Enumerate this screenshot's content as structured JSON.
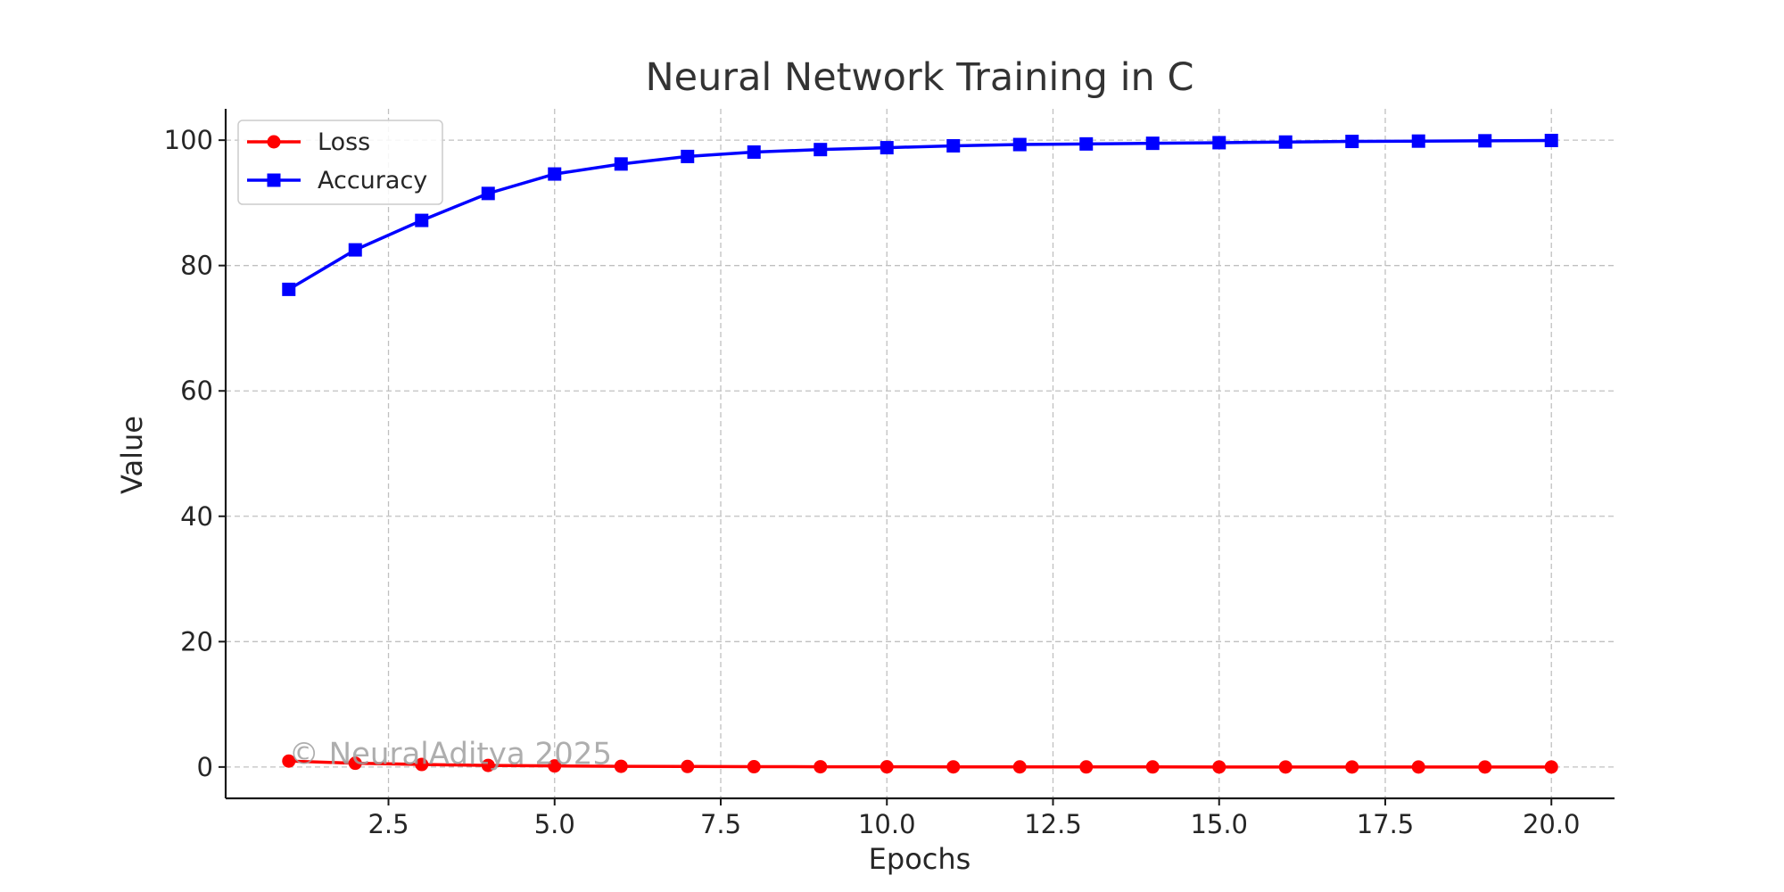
{
  "chart_data": {
    "type": "line",
    "title": "Neural Network Training in C",
    "xlabel": "Epochs",
    "ylabel": "Value",
    "xlim": [
      0.05,
      20.95
    ],
    "ylim": [
      -5,
      105
    ],
    "xticks": [
      2.5,
      5.0,
      7.5,
      10.0,
      12.5,
      15.0,
      17.5,
      20.0
    ],
    "xtick_labels": [
      "2.5",
      "5.0",
      "7.5",
      "10.0",
      "12.5",
      "15.0",
      "17.5",
      "20.0"
    ],
    "yticks": [
      0,
      20,
      40,
      60,
      80,
      100
    ],
    "ytick_labels": [
      "0",
      "20",
      "40",
      "60",
      "80",
      "100"
    ],
    "grid": true,
    "legend_position": "top-left",
    "x": [
      1,
      2,
      3,
      4,
      5,
      6,
      7,
      8,
      9,
      10,
      11,
      12,
      13,
      14,
      15,
      16,
      17,
      18,
      19,
      20
    ],
    "series": [
      {
        "name": "Loss",
        "color": "#ff0000",
        "marker": "circle",
        "values": [
          0.95,
          0.6,
          0.4,
          0.25,
          0.17,
          0.11,
          0.08,
          0.05,
          0.04,
          0.03,
          0.02,
          0.015,
          0.01,
          0.008,
          0.006,
          0.005,
          0.004,
          0.003,
          0.002,
          0.001
        ]
      },
      {
        "name": "Accuracy",
        "color": "#0000ff",
        "marker": "square",
        "values": [
          76.2,
          82.5,
          87.2,
          91.5,
          94.6,
          96.2,
          97.4,
          98.1,
          98.5,
          98.8,
          99.1,
          99.3,
          99.4,
          99.5,
          99.6,
          99.7,
          99.8,
          99.85,
          99.9,
          99.95
        ]
      }
    ],
    "annotations": [
      {
        "text": "© NeuralAditya 2025",
        "x": 1.0,
        "y": 0.5
      }
    ]
  }
}
